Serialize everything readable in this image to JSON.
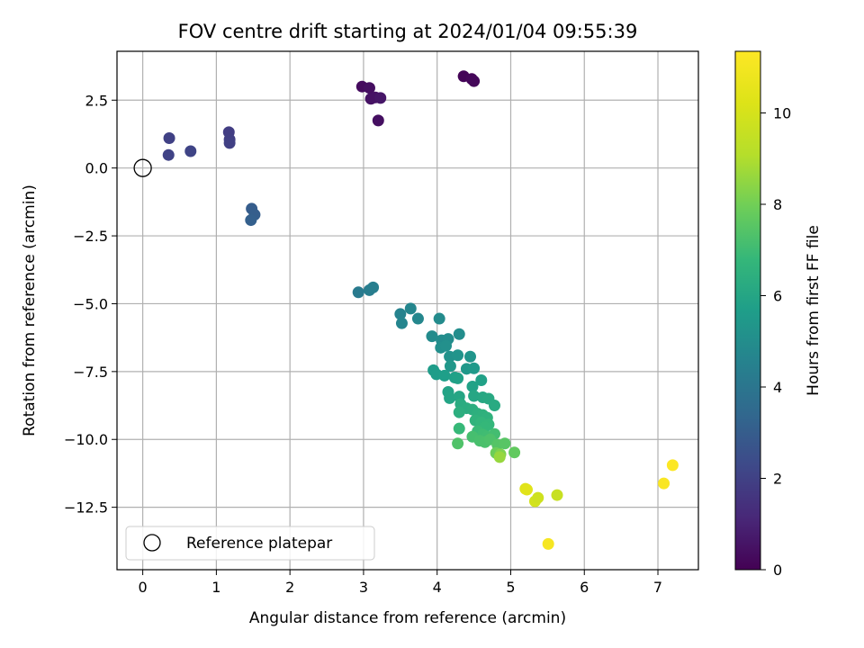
{
  "chart_data": {
    "type": "scatter",
    "title": "FOV centre drift starting at 2024/01/04 09:55:39",
    "xlabel": "Angular distance from reference (arcmin)",
    "ylabel": "Rotation from reference (arcmin)",
    "xlim": [
      -0.35,
      7.55
    ],
    "ylim": [
      -14.8,
      4.3
    ],
    "xticks": [
      0,
      1,
      2,
      3,
      4,
      5,
      6,
      7
    ],
    "yticks": [
      2.5,
      0.0,
      -2.5,
      -5.0,
      -7.5,
      -10.0,
      -12.5
    ],
    "xtick_labels": [
      "0",
      "1",
      "2",
      "3",
      "4",
      "5",
      "6",
      "7"
    ],
    "ytick_labels": [
      "2.5",
      "0.0",
      "−2.5",
      "−5.0",
      "−7.5",
      "−10.0",
      "−12.5"
    ],
    "grid": true,
    "colormap": "viridis",
    "colorbar": {
      "label": "Hours from first FF file",
      "range": [
        0,
        11.35
      ],
      "ticks": [
        0,
        2,
        4,
        6,
        8,
        10
      ],
      "tick_labels": [
        "0",
        "2",
        "4",
        "6",
        "8",
        "10"
      ]
    },
    "reference": {
      "x": 0,
      "y": 0,
      "legend_label": "Reference platepar"
    },
    "legend_position": "lower-left",
    "points": [
      {
        "x": 2.98,
        "y": 3.0,
        "h": 0.3
      },
      {
        "x": 3.08,
        "y": 2.95,
        "h": 0.4
      },
      {
        "x": 3.1,
        "y": 2.55,
        "h": 0.5
      },
      {
        "x": 3.16,
        "y": 2.6,
        "h": 0.5
      },
      {
        "x": 3.23,
        "y": 2.58,
        "h": 0.6
      },
      {
        "x": 3.2,
        "y": 1.75,
        "h": 0.4
      },
      {
        "x": 4.36,
        "y": 3.38,
        "h": 0.1
      },
      {
        "x": 4.47,
        "y": 3.28,
        "h": 0.15
      },
      {
        "x": 4.5,
        "y": 3.2,
        "h": 0.2
      },
      {
        "x": 0.36,
        "y": 1.1,
        "h": 2.0
      },
      {
        "x": 0.35,
        "y": 0.48,
        "h": 2.05
      },
      {
        "x": 0.65,
        "y": 0.62,
        "h": 2.1
      },
      {
        "x": 1.17,
        "y": 1.32,
        "h": 1.85
      },
      {
        "x": 1.18,
        "y": 1.05,
        "h": 1.9
      },
      {
        "x": 1.18,
        "y": 0.92,
        "h": 1.95
      },
      {
        "x": 1.48,
        "y": -1.5,
        "h": 3.0
      },
      {
        "x": 1.52,
        "y": -1.72,
        "h": 3.05
      },
      {
        "x": 1.47,
        "y": -1.92,
        "h": 3.1
      },
      {
        "x": 2.93,
        "y": -4.58,
        "h": 4.2
      },
      {
        "x": 3.08,
        "y": -4.5,
        "h": 4.3
      },
      {
        "x": 3.13,
        "y": -4.4,
        "h": 4.35
      },
      {
        "x": 3.5,
        "y": -5.38,
        "h": 4.6
      },
      {
        "x": 3.52,
        "y": -5.72,
        "h": 4.65
      },
      {
        "x": 3.64,
        "y": -5.18,
        "h": 4.7
      },
      {
        "x": 3.74,
        "y": -5.55,
        "h": 4.75
      },
      {
        "x": 3.93,
        "y": -6.2,
        "h": 4.9
      },
      {
        "x": 4.03,
        "y": -5.55,
        "h": 4.9
      },
      {
        "x": 4.06,
        "y": -6.35,
        "h": 4.95
      },
      {
        "x": 4.15,
        "y": -6.3,
        "h": 5.0
      },
      {
        "x": 4.3,
        "y": -6.12,
        "h": 5.0
      },
      {
        "x": 4.05,
        "y": -6.62,
        "h": 5.05
      },
      {
        "x": 4.12,
        "y": -6.55,
        "h": 5.1
      },
      {
        "x": 4.17,
        "y": -6.95,
        "h": 5.2
      },
      {
        "x": 4.28,
        "y": -6.9,
        "h": 5.25
      },
      {
        "x": 4.45,
        "y": -6.95,
        "h": 5.3
      },
      {
        "x": 4.18,
        "y": -7.3,
        "h": 5.4
      },
      {
        "x": 4.4,
        "y": -7.4,
        "h": 5.45
      },
      {
        "x": 4.5,
        "y": -7.38,
        "h": 5.5
      },
      {
        "x": 3.95,
        "y": -7.45,
        "h": 5.6
      },
      {
        "x": 3.99,
        "y": -7.6,
        "h": 5.65
      },
      {
        "x": 4.1,
        "y": -7.65,
        "h": 5.7
      },
      {
        "x": 4.24,
        "y": -7.72,
        "h": 5.75
      },
      {
        "x": 4.28,
        "y": -7.75,
        "h": 5.8
      },
      {
        "x": 4.6,
        "y": -7.82,
        "h": 5.8
      },
      {
        "x": 4.48,
        "y": -8.05,
        "h": 5.85
      },
      {
        "x": 4.15,
        "y": -8.25,
        "h": 5.9
      },
      {
        "x": 4.17,
        "y": -8.48,
        "h": 5.95
      },
      {
        "x": 4.3,
        "y": -8.42,
        "h": 6.0
      },
      {
        "x": 4.5,
        "y": -8.4,
        "h": 6.05
      },
      {
        "x": 4.62,
        "y": -8.45,
        "h": 6.1
      },
      {
        "x": 4.7,
        "y": -8.5,
        "h": 6.15
      },
      {
        "x": 4.78,
        "y": -8.75,
        "h": 6.2
      },
      {
        "x": 4.32,
        "y": -8.7,
        "h": 6.25
      },
      {
        "x": 4.4,
        "y": -8.85,
        "h": 6.3
      },
      {
        "x": 4.48,
        "y": -8.9,
        "h": 6.35
      },
      {
        "x": 4.3,
        "y": -9.0,
        "h": 6.4
      },
      {
        "x": 4.55,
        "y": -9.05,
        "h": 6.45
      },
      {
        "x": 4.62,
        "y": -9.1,
        "h": 6.5
      },
      {
        "x": 4.68,
        "y": -9.2,
        "h": 6.55
      },
      {
        "x": 4.52,
        "y": -9.3,
        "h": 6.6
      },
      {
        "x": 4.6,
        "y": -9.38,
        "h": 6.7
      },
      {
        "x": 4.7,
        "y": -9.45,
        "h": 6.75
      },
      {
        "x": 4.65,
        "y": -9.55,
        "h": 6.8
      },
      {
        "x": 4.3,
        "y": -9.6,
        "h": 6.85
      },
      {
        "x": 4.55,
        "y": -9.7,
        "h": 6.9
      },
      {
        "x": 4.62,
        "y": -9.82,
        "h": 7.0
      },
      {
        "x": 4.68,
        "y": -9.9,
        "h": 7.05
      },
      {
        "x": 4.78,
        "y": -9.8,
        "h": 7.1
      },
      {
        "x": 4.48,
        "y": -9.9,
        "h": 7.15
      },
      {
        "x": 4.58,
        "y": -10.05,
        "h": 7.2
      },
      {
        "x": 4.65,
        "y": -10.1,
        "h": 7.25
      },
      {
        "x": 4.72,
        "y": -10.0,
        "h": 7.3
      },
      {
        "x": 4.28,
        "y": -10.15,
        "h": 7.35
      },
      {
        "x": 4.82,
        "y": -10.2,
        "h": 7.45
      },
      {
        "x": 4.92,
        "y": -10.15,
        "h": 7.5
      },
      {
        "x": 5.05,
        "y": -10.48,
        "h": 7.7
      },
      {
        "x": 4.8,
        "y": -10.5,
        "h": 7.9
      },
      {
        "x": 4.86,
        "y": -10.55,
        "h": 8.2
      },
      {
        "x": 4.85,
        "y": -10.65,
        "h": 8.6
      },
      {
        "x": 5.2,
        "y": -11.82,
        "h": 10.3
      },
      {
        "x": 5.22,
        "y": -11.85,
        "h": 10.35
      },
      {
        "x": 5.33,
        "y": -12.28,
        "h": 9.9
      },
      {
        "x": 5.37,
        "y": -12.15,
        "h": 9.8
      },
      {
        "x": 5.63,
        "y": -12.05,
        "h": 9.6
      },
      {
        "x": 5.51,
        "y": -13.85,
        "h": 11.1
      },
      {
        "x": 7.08,
        "y": -11.62,
        "h": 11.2
      },
      {
        "x": 7.2,
        "y": -10.95,
        "h": 11.3
      }
    ]
  }
}
